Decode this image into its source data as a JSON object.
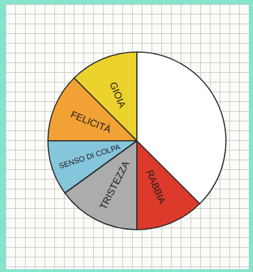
{
  "chart_data": {
    "type": "pie",
    "categories": [
      "GIOIA",
      "FELICITÀ",
      "SENSO DI COLPA",
      "TRISTEZZA",
      "RABBIA",
      null
    ],
    "values": [
      12.5,
      12.5,
      10,
      15,
      12.5,
      37.5
    ],
    "colors": [
      "#ecd22c",
      "#f2a234",
      "#86c6dc",
      "#acacac",
      "#dc3b2c",
      "#ffffff"
    ]
  }
}
